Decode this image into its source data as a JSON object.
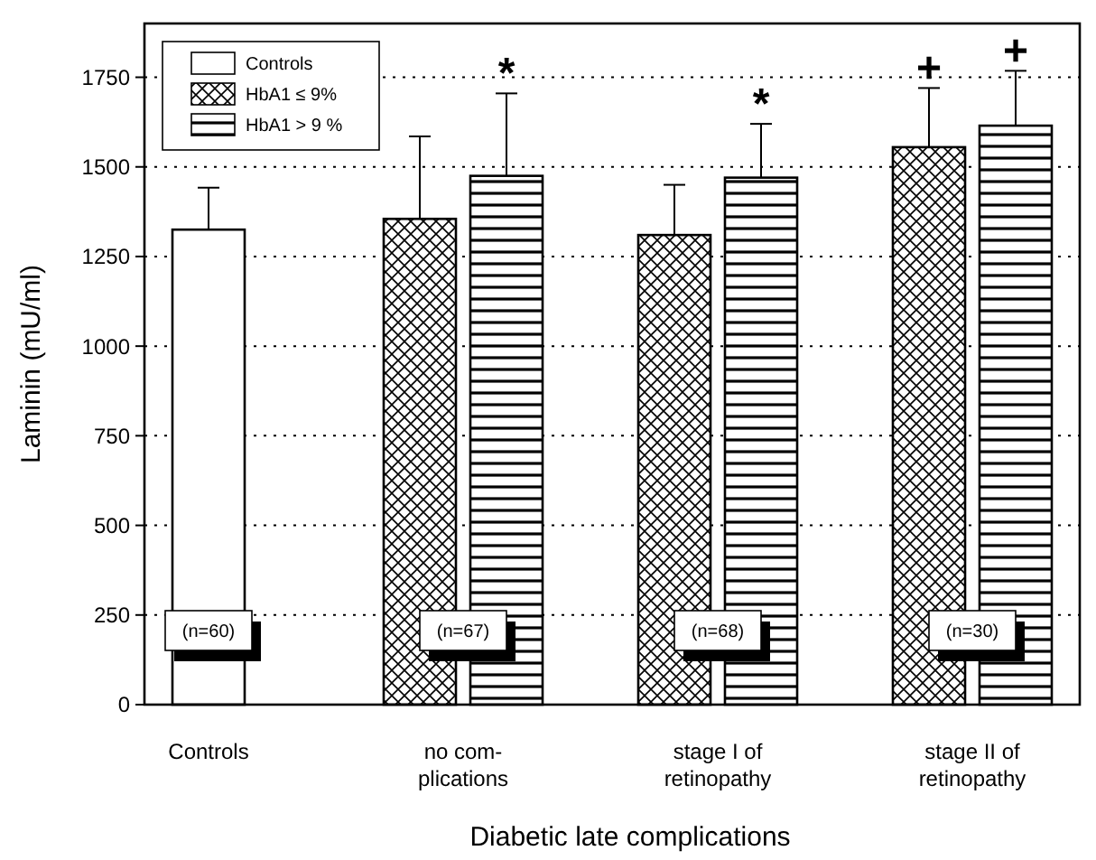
{
  "chart_data": {
    "type": "bar",
    "xlabel": "Diabetic late complications",
    "ylabel": "Laminin  (mU/ml)",
    "categories": [
      "Controls",
      "no com-\nplications",
      "stage I of\nretinopathy",
      "stage II of\nretinopathy"
    ],
    "series": [
      {
        "name": "Controls",
        "color": "#ffffff",
        "values": [
          1325,
          null,
          null,
          null
        ],
        "errors": [
          117,
          null,
          null,
          null
        ]
      },
      {
        "name": "HbA1 ≤ 9%",
        "color": "#000000",
        "values": [
          null,
          1355,
          1310,
          1555
        ],
        "errors": [
          null,
          230,
          140,
          165
        ]
      },
      {
        "name": "HbA1 > 9 %",
        "color": "#000000",
        "values": [
          null,
          1475,
          1470,
          1615
        ],
        "errors": [
          null,
          230,
          150,
          153
        ]
      }
    ],
    "ylim": [
      0,
      1900
    ],
    "yticks": [
      0,
      250,
      500,
      750,
      1000,
      1250,
      1500,
      1750
    ],
    "grid": "y",
    "legend": "top left",
    "annotations": [
      {
        "text": "*",
        "x": "no com-\nplications",
        "y": 1475
      },
      {
        "text": "*",
        "x": "stage I of\nretinopathy",
        "y": 1470
      },
      {
        "text": "+",
        "x": "stage II of\nretinopathy",
        "y": 1555
      },
      {
        "text": "+",
        "x": "stage II of\nretinopathy",
        "y": 1615
      },
      "(n=60)",
      "(n=67)",
      "(n=68)",
      "(n=30)"
    ]
  }
}
